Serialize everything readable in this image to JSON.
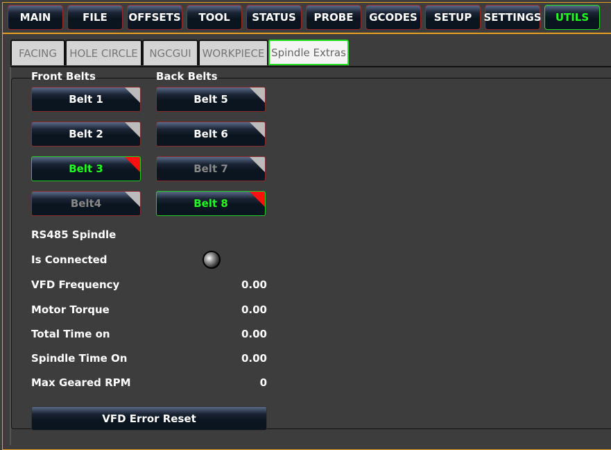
{
  "nav": [
    "MAIN",
    "FILE",
    "OFFSETS",
    "TOOL",
    "STATUS",
    "PROBE",
    "GCODES",
    "SETUP",
    "SETTINGS",
    "UTILS"
  ],
  "nav_active": "UTILS",
  "tabs": [
    "FACING",
    "HOLE CIRCLE",
    "NGCGUI",
    "WORKPIECE",
    "Spindle Extras"
  ],
  "tab_active": "Spindle Extras",
  "front_title": "Front Belts",
  "back_title": "Back Belts",
  "belts": [
    {
      "label": "Belt 1",
      "state": "normal"
    },
    {
      "label": "Belt 2",
      "state": "normal"
    },
    {
      "label": "Belt 3",
      "state": "selected"
    },
    {
      "label": "Belt4",
      "state": "disabled"
    },
    {
      "label": "Belt 5",
      "state": "normal"
    },
    {
      "label": "Belt 6",
      "state": "normal"
    },
    {
      "label": "Belt 7",
      "state": "disabled"
    },
    {
      "label": "Belt 8",
      "state": "selected"
    }
  ],
  "rs485_title": "RS485 Spindle",
  "is_connected_label": "Is Connected",
  "is_connected": false,
  "readouts": [
    {
      "label": "VFD Frequency",
      "value": "0.00"
    },
    {
      "label": "Motor Torque",
      "value": "0.00"
    },
    {
      "label": "Total Time on",
      "value": "0.00"
    },
    {
      "label": "Spindle Time On",
      "value": "0.00"
    },
    {
      "label": "Max Geared RPM",
      "value": "0"
    }
  ],
  "reset_label": "VFD Error Reset",
  "colors": {
    "accent": "#20ff20",
    "frame": "#e8a020",
    "button_border": "#9a2a2a"
  }
}
